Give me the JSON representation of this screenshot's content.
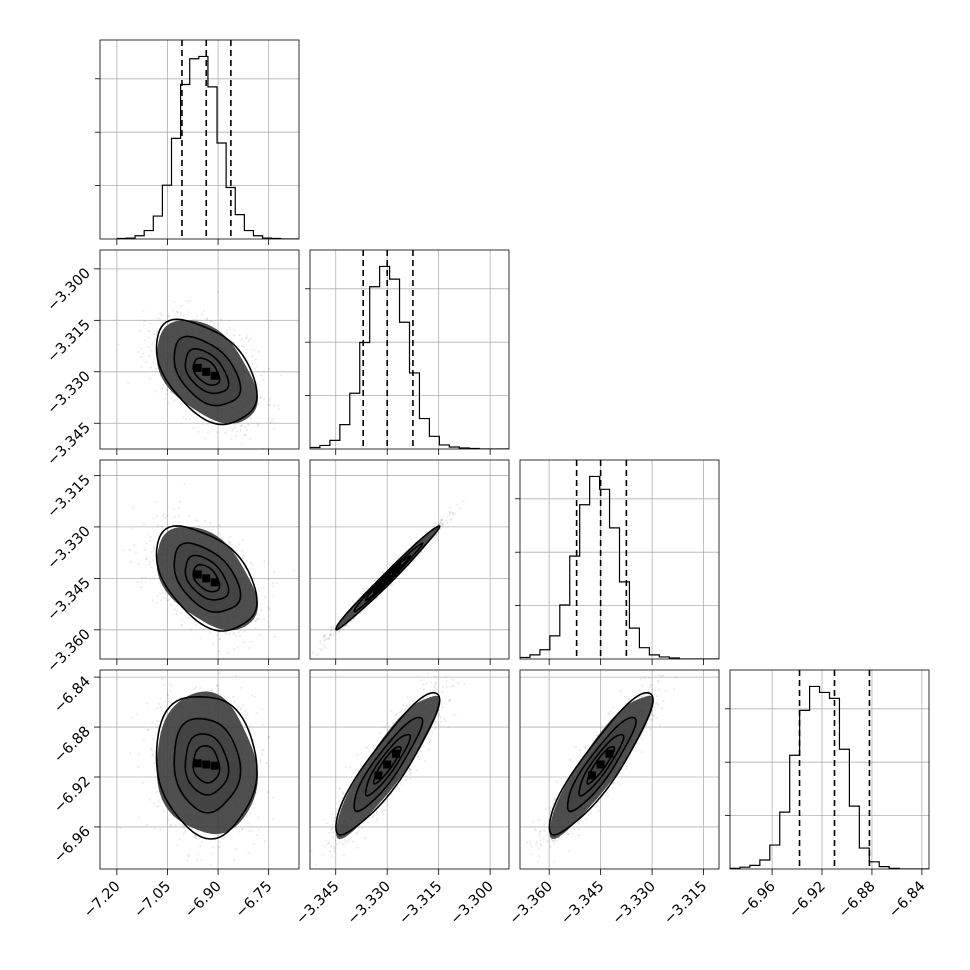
{
  "chart_data": {
    "type": "corner",
    "n_params": 4,
    "params": [
      {
        "range": [
          -7.25,
          -6.66
        ],
        "ticks": [
          -7.2,
          -7.05,
          -6.9,
          -6.75
        ],
        "tick_labels": [
          "−7.20",
          "−7.05",
          "−6.90",
          "−6.75"
        ],
        "quantiles": [
          -7.007,
          -6.935,
          -6.862
        ],
        "mean": -6.935,
        "sd": 0.072
      },
      {
        "range": [
          -3.3525,
          -3.2945
        ],
        "ticks": [
          -3.345,
          -3.33,
          -3.315,
          -3.3
        ],
        "tick_labels": [
          "−3.345",
          "−3.330",
          "−3.315",
          "−3.300"
        ],
        "quantiles": [
          -3.337,
          -3.33,
          -3.3225
        ],
        "mean": -3.33,
        "sd": 0.0073
      },
      {
        "range": [
          -3.3685,
          -3.3105
        ],
        "ticks": [
          -3.36,
          -3.345,
          -3.33,
          -3.315
        ],
        "tick_labels": [
          "−3.360",
          "−3.345",
          "−3.330",
          "−3.315"
        ],
        "quantiles": [
          -3.352,
          -3.345,
          -3.3375
        ],
        "mean": -3.345,
        "sd": 0.0073
      },
      {
        "range": [
          -6.9937,
          -6.8343
        ],
        "ticks": [
          -6.96,
          -6.92,
          -6.88,
          -6.84
        ],
        "tick_labels": [
          "−6.96",
          "−6.92",
          "−6.88",
          "−6.84"
        ],
        "quantiles": [
          -6.938,
          -6.91,
          -6.882
        ],
        "mean": -6.91,
        "sd": 0.0275
      }
    ],
    "correlations": [
      [
        1.0,
        -0.45,
        -0.45,
        -0.1
      ],
      [
        -0.45,
        1.0,
        0.99,
        0.9
      ],
      [
        -0.45,
        0.99,
        1.0,
        0.9
      ],
      [
        -0.1,
        0.9,
        0.9,
        1.0
      ]
    ],
    "histograms": [
      {
        "param": 0,
        "bin_edges_range": [
          -7.2,
          -6.66
        ],
        "counts": [
          1,
          2,
          7,
          18,
          49,
          115,
          215,
          330,
          385,
          390,
          325,
          205,
          110,
          52,
          18,
          7,
          2,
          1,
          0,
          0
        ]
      },
      {
        "param": 1,
        "bin_edges_range": [
          -3.3525,
          -3.2945
        ],
        "counts": [
          3,
          7,
          17,
          48,
          110,
          210,
          320,
          360,
          335,
          250,
          150,
          60,
          25,
          8,
          4,
          2,
          1,
          0,
          0,
          0
        ]
      },
      {
        "param": 2,
        "bin_edges_range": [
          -3.3685,
          -3.3105
        ],
        "counts": [
          3,
          8,
          18,
          45,
          105,
          200,
          300,
          355,
          330,
          255,
          150,
          60,
          22,
          8,
          4,
          2,
          0,
          0,
          0,
          0
        ]
      },
      {
        "param": 3,
        "bin_edges_range": [
          -6.9937,
          -6.8343
        ],
        "counts": [
          1,
          3,
          6,
          15,
          40,
          95,
          190,
          265,
          305,
          295,
          285,
          200,
          105,
          35,
          12,
          4,
          1,
          0,
          0,
          0
        ]
      }
    ],
    "levels_sigma": [
      0.5,
      1.0,
      1.5,
      2.0
    ],
    "grid": true,
    "xlabel": "",
    "ylabel": "",
    "title": ""
  }
}
